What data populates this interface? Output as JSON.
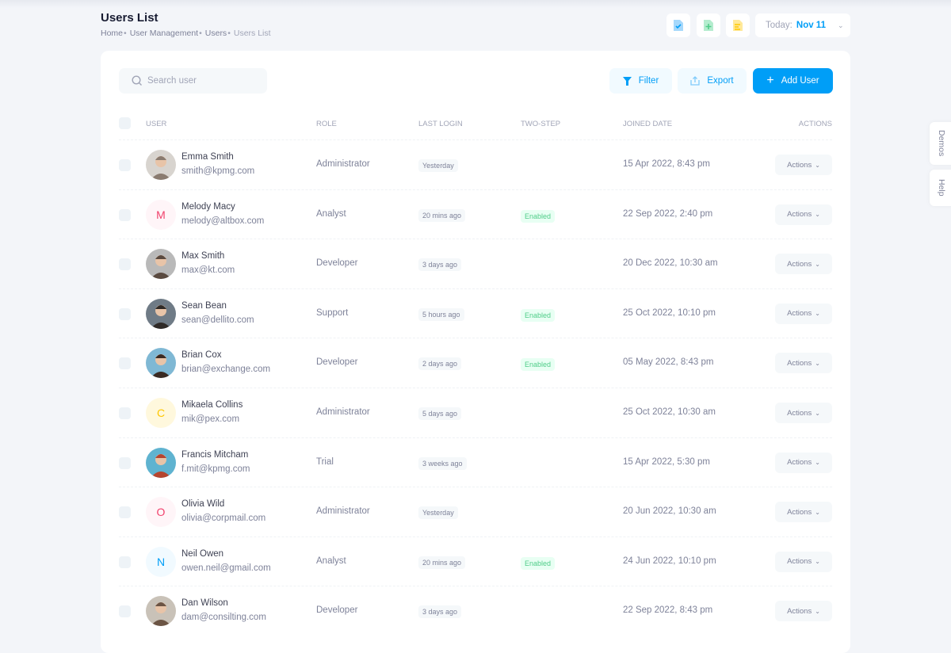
{
  "header": {
    "title": "Users List",
    "breadcrumb": [
      "Home",
      "User Management",
      "Users",
      "Users List"
    ],
    "date_label": "Today:",
    "date_value": "Nov 11"
  },
  "toolbar": {
    "search_placeholder": "Search user",
    "filter": "Filter",
    "export": "Export",
    "add_user": "Add User"
  },
  "columns": [
    "User",
    "Role",
    "Last Login",
    "Two-step",
    "Joined Date",
    "Actions"
  ],
  "colors": {
    "primary": "#009ef7",
    "success": "#50cd89",
    "danger": "#f1416c",
    "warning": "#ffc700"
  },
  "users": [
    {
      "name": "Emma Smith",
      "email": "smith@kpmg.com",
      "role": "Administrator",
      "last_login": "Yesterday",
      "two_step": "",
      "joined": "15 Apr 2022, 8:43 pm",
      "avatar": "photo",
      "initial": "",
      "bg": "#d8d4cf",
      "fg": "#8a7b70"
    },
    {
      "name": "Melody Macy",
      "email": "melody@altbox.com",
      "role": "Analyst",
      "last_login": "20 mins ago",
      "two_step": "Enabled",
      "joined": "22 Sep 2022, 2:40 pm",
      "avatar": "initial",
      "initial": "M",
      "bg": "#fff5f8",
      "fg": "#f1416c"
    },
    {
      "name": "Max Smith",
      "email": "max@kt.com",
      "role": "Developer",
      "last_login": "3 days ago",
      "two_step": "",
      "joined": "20 Dec 2022, 10:30 am",
      "avatar": "photo",
      "initial": "",
      "bg": "#b9b9b9",
      "fg": "#5a4a40"
    },
    {
      "name": "Sean Bean",
      "email": "sean@dellito.com",
      "role": "Support",
      "last_login": "5 hours ago",
      "two_step": "Enabled",
      "joined": "25 Oct 2022, 10:10 pm",
      "avatar": "photo",
      "initial": "",
      "bg": "#6f7b86",
      "fg": "#2f2a27"
    },
    {
      "name": "Brian Cox",
      "email": "brian@exchange.com",
      "role": "Developer",
      "last_login": "2 days ago",
      "two_step": "Enabled",
      "joined": "05 May 2022, 8:43 pm",
      "avatar": "photo",
      "initial": "",
      "bg": "#7fb8d4",
      "fg": "#3a2a22"
    },
    {
      "name": "Mikaela Collins",
      "email": "mik@pex.com",
      "role": "Administrator",
      "last_login": "5 days ago",
      "two_step": "",
      "joined": "25 Oct 2022, 10:30 am",
      "avatar": "initial",
      "initial": "C",
      "bg": "#fff8dd",
      "fg": "#ffc700"
    },
    {
      "name": "Francis Mitcham",
      "email": "f.mit@kpmg.com",
      "role": "Trial",
      "last_login": "3 weeks ago",
      "two_step": "",
      "joined": "15 Apr 2022, 5:30 pm",
      "avatar": "photo",
      "initial": "",
      "bg": "#5fb3d0",
      "fg": "#b5452f"
    },
    {
      "name": "Olivia Wild",
      "email": "olivia@corpmail.com",
      "role": "Administrator",
      "last_login": "Yesterday",
      "two_step": "",
      "joined": "20 Jun 2022, 10:30 am",
      "avatar": "initial",
      "initial": "O",
      "bg": "#fff5f8",
      "fg": "#f1416c"
    },
    {
      "name": "Neil Owen",
      "email": "owen.neil@gmail.com",
      "role": "Analyst",
      "last_login": "20 mins ago",
      "two_step": "Enabled",
      "joined": "24 Jun 2022, 10:10 pm",
      "avatar": "initial",
      "initial": "N",
      "bg": "#f1faff",
      "fg": "#009ef7"
    },
    {
      "name": "Dan Wilson",
      "email": "dam@consilting.com",
      "role": "Developer",
      "last_login": "3 days ago",
      "two_step": "",
      "joined": "22 Sep 2022, 8:43 pm",
      "avatar": "photo",
      "initial": "",
      "bg": "#c9c2b8",
      "fg": "#6b5444"
    }
  ],
  "actions_label": "Actions",
  "side_tabs": [
    "Demos",
    "Help"
  ]
}
